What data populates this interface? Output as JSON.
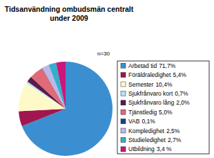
{
  "chart_data": {
    "type": "pie",
    "title": "Tidsanvändning ombudsmän centralt under 2009",
    "annotations": [
      "n=30"
    ],
    "categories": [
      "Arbetad tid",
      "Föräldraledighet",
      "Semester",
      "Sjukfrånvaro kort",
      "Sjukfrånvaro lång",
      "Tjänstledig",
      "VAB",
      "Kompledighet",
      "Studieledighet",
      "Utbildning"
    ],
    "values": [
      71.7,
      5.4,
      10.4,
      0.7,
      2.0,
      5.0,
      0.1,
      2.5,
      2.7,
      3.4
    ],
    "value_labels": [
      "71,7%",
      "5,4%",
      "10,4%",
      "0,7%",
      "2,0%",
      "5,0%",
      "0,1%",
      "2,5%",
      "2,7%",
      "3,4 %"
    ],
    "colors": [
      "#3b8fd1",
      "#a0174f",
      "#fdf9c9",
      "#b4e1f1",
      "#5c1a4c",
      "#e06a78",
      "#1f3f8f",
      "#b9b9e9",
      "#36aec8",
      "#c8187c"
    ],
    "legend": "right"
  }
}
